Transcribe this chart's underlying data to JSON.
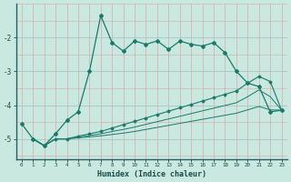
{
  "xlabel": "Humidex (Indice chaleur)",
  "bg_color": "#c8e8e0",
  "line_color": "#1a7a6a",
  "xlim": [
    -0.5,
    23.5
  ],
  "ylim": [
    -5.6,
    -1.0
  ],
  "yticks": [
    -5,
    -4,
    -3,
    -2
  ],
  "xticks": [
    0,
    1,
    2,
    3,
    4,
    5,
    6,
    7,
    8,
    9,
    10,
    11,
    12,
    13,
    14,
    15,
    16,
    17,
    18,
    19,
    20,
    21,
    22,
    23
  ],
  "line1_x": [
    0,
    1,
    2,
    3,
    4,
    5,
    6,
    7,
    8,
    9,
    10,
    11,
    12,
    13,
    14,
    15,
    16,
    17,
    18,
    19,
    20,
    21,
    22,
    23
  ],
  "line1_y": [
    -4.55,
    -5.0,
    -5.2,
    -4.85,
    -4.45,
    -4.2,
    -3.0,
    -1.35,
    -2.15,
    -2.4,
    -2.1,
    -2.2,
    -2.1,
    -2.35,
    -2.1,
    -2.2,
    -2.25,
    -2.15,
    -2.45,
    -3.0,
    -3.35,
    -3.45,
    -4.2,
    -4.15
  ],
  "line2_x": [
    1,
    2,
    3,
    4,
    5,
    6,
    7,
    8,
    9,
    10,
    11,
    12,
    13,
    14,
    15,
    16,
    17,
    18,
    19,
    20,
    21,
    22,
    23
  ],
  "line2_y": [
    -5.0,
    -5.2,
    -5.0,
    -5.0,
    -4.92,
    -4.85,
    -4.78,
    -4.68,
    -4.58,
    -4.48,
    -4.38,
    -4.28,
    -4.18,
    -4.08,
    -3.98,
    -3.88,
    -3.78,
    -3.68,
    -3.58,
    -3.35,
    -3.15,
    -3.3,
    -4.15
  ],
  "line3_x": [
    1,
    2,
    3,
    4,
    5,
    6,
    7,
    8,
    9,
    10,
    11,
    12,
    13,
    14,
    15,
    16,
    17,
    18,
    19,
    20,
    21,
    22,
    23
  ],
  "line3_y": [
    -5.0,
    -5.2,
    -5.0,
    -5.0,
    -4.95,
    -4.9,
    -4.85,
    -4.78,
    -4.72,
    -4.65,
    -4.57,
    -4.49,
    -4.41,
    -4.33,
    -4.25,
    -4.17,
    -4.09,
    -4.01,
    -3.93,
    -3.75,
    -3.55,
    -3.75,
    -4.15
  ],
  "line4_x": [
    1,
    2,
    3,
    4,
    5,
    6,
    7,
    8,
    9,
    10,
    11,
    12,
    13,
    14,
    15,
    16,
    17,
    18,
    19,
    20,
    21,
    22,
    23
  ],
  "line4_y": [
    -5.0,
    -5.2,
    -5.0,
    -5.0,
    -4.97,
    -4.94,
    -4.91,
    -4.87,
    -4.83,
    -4.78,
    -4.72,
    -4.66,
    -4.6,
    -4.54,
    -4.48,
    -4.42,
    -4.36,
    -4.3,
    -4.24,
    -4.14,
    -4.04,
    -4.14,
    -4.15
  ]
}
